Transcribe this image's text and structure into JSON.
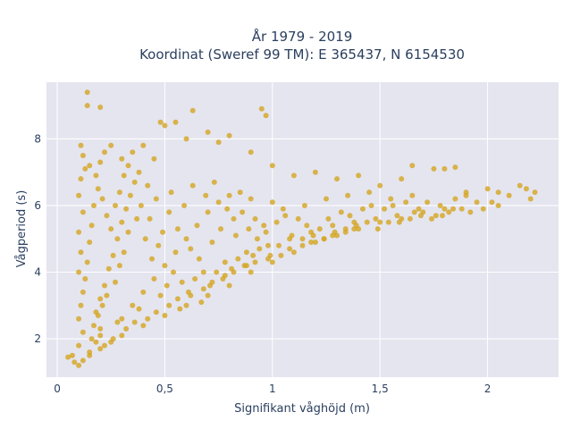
{
  "chart_data": {
    "type": "scatter",
    "title": "År 1979 - 2019",
    "subtitle": "Koordinat (Sweref 99 TM): E 365437, N 6154530",
    "xlabel": "Signifikant våghöjd (m)",
    "ylabel": "Vågperiod (s)",
    "xlim": [
      -0.05,
      2.33
    ],
    "ylim": [
      0.85,
      9.7
    ],
    "x_ticks": [
      0,
      0.5,
      1,
      1.5,
      2
    ],
    "x_tick_labels": [
      "0",
      "0,5",
      "1",
      "1,5",
      "2"
    ],
    "y_ticks": [
      2,
      4,
      6,
      8
    ],
    "y_tick_labels": [
      "2",
      "4",
      "6",
      "8"
    ],
    "grid": true,
    "legend": "none",
    "marker_color": "#d4a520",
    "background_color": "#e5e5f0",
    "series": [
      {
        "values": [
          [
            0.05,
            1.45
          ],
          [
            0.07,
            1.5
          ],
          [
            0.08,
            1.3
          ],
          [
            0.1,
            1.2
          ],
          [
            0.12,
            1.35
          ],
          [
            0.15,
            1.6
          ],
          [
            0.18,
            1.9
          ],
          [
            0.2,
            2.1
          ],
          [
            0.1,
            1.8
          ],
          [
            0.12,
            2.2
          ],
          [
            0.1,
            2.6
          ],
          [
            0.11,
            3.0
          ],
          [
            0.12,
            3.4
          ],
          [
            0.1,
            4.0
          ],
          [
            0.11,
            4.6
          ],
          [
            0.1,
            5.2
          ],
          [
            0.12,
            5.8
          ],
          [
            0.1,
            6.3
          ],
          [
            0.11,
            6.8
          ],
          [
            0.13,
            7.1
          ],
          [
            0.12,
            7.5
          ],
          [
            0.11,
            7.8
          ],
          [
            0.15,
            7.2
          ],
          [
            0.18,
            6.9
          ],
          [
            0.2,
            7.3
          ],
          [
            0.22,
            7.6
          ],
          [
            0.25,
            7.8
          ],
          [
            0.14,
            9.4
          ],
          [
            0.14,
            9.0
          ],
          [
            0.2,
            8.95
          ],
          [
            0.3,
            7.4
          ],
          [
            0.35,
            7.6
          ],
          [
            0.4,
            7.8
          ],
          [
            0.45,
            7.4
          ],
          [
            0.48,
            8.5
          ],
          [
            0.5,
            8.4
          ],
          [
            0.55,
            8.5
          ],
          [
            0.6,
            8.0
          ],
          [
            0.63,
            8.85
          ],
          [
            0.7,
            8.2
          ],
          [
            0.75,
            7.9
          ],
          [
            0.8,
            8.1
          ],
          [
            0.9,
            7.6
          ],
          [
            0.97,
            8.7
          ],
          [
            0.95,
            8.9
          ],
          [
            1.0,
            7.2
          ],
          [
            1.1,
            6.9
          ],
          [
            1.2,
            7.0
          ],
          [
            1.3,
            6.8
          ],
          [
            1.4,
            6.9
          ],
          [
            1.5,
            6.6
          ],
          [
            1.6,
            6.8
          ],
          [
            1.65,
            7.2
          ],
          [
            1.75,
            7.1
          ],
          [
            1.8,
            7.1
          ],
          [
            1.85,
            7.15
          ],
          [
            1.9,
            6.4
          ],
          [
            2.0,
            6.5
          ],
          [
            2.05,
            6.4
          ],
          [
            2.1,
            6.3
          ],
          [
            2.15,
            6.6
          ],
          [
            2.2,
            6.2
          ],
          [
            2.22,
            6.4
          ],
          [
            2.18,
            6.5
          ],
          [
            2.05,
            6.0
          ],
          [
            1.95,
            6.1
          ],
          [
            1.9,
            6.3
          ],
          [
            1.85,
            6.2
          ],
          [
            1.8,
            5.9
          ],
          [
            1.7,
            5.8
          ],
          [
            1.6,
            5.6
          ],
          [
            1.5,
            5.5
          ],
          [
            1.4,
            5.3
          ],
          [
            1.3,
            5.1
          ],
          [
            1.2,
            4.9
          ],
          [
            1.1,
            4.6
          ],
          [
            1.0,
            4.3
          ],
          [
            0.9,
            4.0
          ],
          [
            0.8,
            3.6
          ],
          [
            0.7,
            3.3
          ],
          [
            0.6,
            3.0
          ],
          [
            0.5,
            2.7
          ],
          [
            0.4,
            2.4
          ],
          [
            0.3,
            2.1
          ],
          [
            0.25,
            1.9
          ],
          [
            0.2,
            1.7
          ],
          [
            0.15,
            1.5
          ],
          [
            0.3,
            2.6
          ],
          [
            0.35,
            3.0
          ],
          [
            0.4,
            3.4
          ],
          [
            0.45,
            3.8
          ],
          [
            0.5,
            4.2
          ],
          [
            0.55,
            4.6
          ],
          [
            0.6,
            5.0
          ],
          [
            0.65,
            5.4
          ],
          [
            0.7,
            5.8
          ],
          [
            0.75,
            6.1
          ],
          [
            0.8,
            6.3
          ],
          [
            0.85,
            6.4
          ],
          [
            0.9,
            6.2
          ],
          [
            1.0,
            6.1
          ],
          [
            1.05,
            5.9
          ],
          [
            1.15,
            6.0
          ],
          [
            1.25,
            6.2
          ],
          [
            1.35,
            6.3
          ],
          [
            1.45,
            6.4
          ],
          [
            1.55,
            6.2
          ],
          [
            1.65,
            6.3
          ],
          [
            1.72,
            6.1
          ],
          [
            1.78,
            6.0
          ],
          [
            1.68,
            5.9
          ],
          [
            1.58,
            5.7
          ],
          [
            1.48,
            5.6
          ],
          [
            1.38,
            5.5
          ],
          [
            1.28,
            5.4
          ],
          [
            1.18,
            5.2
          ],
          [
            1.08,
            5.0
          ],
          [
            0.98,
            4.8
          ],
          [
            0.88,
            4.6
          ],
          [
            0.78,
            4.3
          ],
          [
            0.68,
            4.0
          ],
          [
            0.58,
            3.7
          ],
          [
            0.48,
            3.3
          ],
          [
            0.38,
            2.9
          ],
          [
            0.28,
            2.5
          ],
          [
            0.2,
            2.3
          ],
          [
            0.18,
            2.8
          ],
          [
            0.2,
            3.2
          ],
          [
            0.22,
            3.6
          ],
          [
            0.24,
            4.1
          ],
          [
            0.26,
            4.5
          ],
          [
            0.28,
            5.0
          ],
          [
            0.3,
            5.5
          ],
          [
            0.32,
            5.9
          ],
          [
            0.34,
            6.3
          ],
          [
            0.36,
            6.7
          ],
          [
            0.38,
            7.0
          ],
          [
            0.42,
            6.6
          ],
          [
            0.46,
            6.2
          ],
          [
            0.52,
            5.8
          ],
          [
            0.56,
            5.3
          ],
          [
            0.62,
            4.7
          ],
          [
            0.66,
            4.4
          ],
          [
            0.72,
            4.9
          ],
          [
            0.76,
            5.3
          ],
          [
            0.82,
            5.6
          ],
          [
            0.86,
            5.8
          ],
          [
            0.92,
            5.6
          ],
          [
            0.96,
            5.4
          ],
          [
            1.02,
            5.5
          ],
          [
            1.06,
            5.7
          ],
          [
            1.12,
            5.6
          ],
          [
            1.16,
            5.4
          ],
          [
            1.22,
            5.3
          ],
          [
            1.26,
            5.6
          ],
          [
            1.32,
            5.8
          ],
          [
            1.36,
            5.7
          ],
          [
            1.42,
            5.9
          ],
          [
            1.46,
            6.0
          ],
          [
            1.52,
            5.9
          ],
          [
            1.56,
            6.0
          ],
          [
            1.62,
            6.1
          ],
          [
            1.66,
            5.8
          ],
          [
            1.76,
            5.7
          ],
          [
            1.82,
            5.8
          ],
          [
            1.88,
            5.9
          ],
          [
            1.92,
            5.8
          ],
          [
            1.98,
            5.9
          ],
          [
            2.02,
            6.1
          ],
          [
            0.16,
            2.0
          ],
          [
            0.17,
            2.4
          ],
          [
            0.19,
            2.7
          ],
          [
            0.21,
            3.0
          ],
          [
            0.23,
            3.3
          ],
          [
            0.27,
            3.7
          ],
          [
            0.29,
            4.2
          ],
          [
            0.31,
            4.6
          ],
          [
            0.33,
            5.2
          ],
          [
            0.37,
            5.6
          ],
          [
            0.41,
            5.0
          ],
          [
            0.44,
            4.4
          ],
          [
            0.47,
            4.8
          ],
          [
            0.51,
            3.6
          ],
          [
            0.54,
            4.0
          ],
          [
            0.57,
            2.9
          ],
          [
            0.61,
            3.4
          ],
          [
            0.64,
            3.8
          ],
          [
            0.67,
            3.1
          ],
          [
            0.71,
            3.6
          ],
          [
            0.74,
            4.0
          ],
          [
            0.77,
            3.8
          ],
          [
            0.81,
            4.1
          ],
          [
            0.84,
            4.4
          ],
          [
            0.87,
            4.2
          ],
          [
            0.91,
            4.5
          ],
          [
            0.94,
            4.7
          ],
          [
            0.99,
            4.5
          ],
          [
            1.03,
            4.8
          ],
          [
            1.09,
            5.1
          ],
          [
            1.14,
            5.0
          ],
          [
            1.19,
            5.1
          ],
          [
            1.24,
            5.0
          ],
          [
            1.29,
            5.2
          ],
          [
            1.34,
            5.3
          ],
          [
            1.39,
            5.4
          ],
          [
            1.44,
            5.5
          ],
          [
            1.49,
            5.3
          ],
          [
            1.54,
            5.5
          ],
          [
            1.59,
            5.5
          ],
          [
            1.64,
            5.6
          ],
          [
            1.69,
            5.7
          ],
          [
            1.74,
            5.6
          ],
          [
            1.79,
            5.7
          ],
          [
            1.84,
            5.9
          ],
          [
            0.13,
            3.8
          ],
          [
            0.14,
            4.3
          ],
          [
            0.15,
            4.9
          ],
          [
            0.16,
            5.4
          ],
          [
            0.17,
            6.0
          ],
          [
            0.19,
            6.5
          ],
          [
            0.21,
            6.2
          ],
          [
            0.23,
            5.7
          ],
          [
            0.25,
            5.3
          ],
          [
            0.27,
            6.0
          ],
          [
            0.29,
            6.4
          ],
          [
            0.31,
            6.9
          ],
          [
            0.33,
            7.2
          ],
          [
            0.39,
            6.0
          ],
          [
            0.43,
            5.6
          ],
          [
            0.49,
            5.2
          ],
          [
            0.53,
            6.4
          ],
          [
            0.59,
            6.0
          ],
          [
            0.63,
            6.6
          ],
          [
            0.69,
            6.3
          ],
          [
            0.73,
            6.7
          ],
          [
            0.79,
            5.9
          ],
          [
            0.83,
            5.1
          ],
          [
            0.89,
            5.3
          ],
          [
            0.93,
            5.0
          ],
          [
            0.97,
            5.2
          ],
          [
            0.22,
            1.8
          ],
          [
            0.26,
            2.0
          ],
          [
            0.32,
            2.3
          ],
          [
            0.36,
            2.5
          ],
          [
            0.42,
            2.6
          ],
          [
            0.46,
            2.8
          ],
          [
            0.52,
            3.0
          ],
          [
            0.56,
            3.2
          ],
          [
            0.62,
            3.3
          ],
          [
            0.68,
            3.5
          ],
          [
            0.72,
            3.7
          ],
          [
            0.78,
            3.9
          ],
          [
            0.82,
            4.0
          ],
          [
            0.88,
            4.2
          ],
          [
            0.92,
            4.3
          ],
          [
            0.98,
            4.4
          ],
          [
            1.04,
            4.5
          ],
          [
            1.08,
            4.7
          ],
          [
            1.14,
            4.8
          ],
          [
            1.18,
            4.9
          ],
          [
            1.24,
            5.0
          ],
          [
            1.28,
            5.1
          ],
          [
            1.34,
            5.2
          ],
          [
            1.38,
            5.3
          ]
        ]
      }
    ]
  }
}
